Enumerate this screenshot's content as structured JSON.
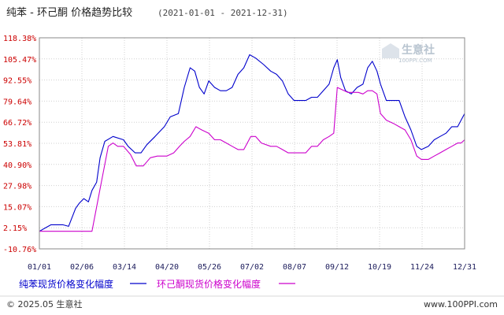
{
  "header": {
    "title": "纯苯 - 环己酮 价格趋势比较",
    "date_range": "(2021-01-01 - 2021-12-31)"
  },
  "watermark": {
    "text": "生意社",
    "sub": "100PPI.COM"
  },
  "footer": {
    "left": "© 2025.05 生意社",
    "right": "www.100PPI.com"
  },
  "colors": {
    "series1": "#0000cc",
    "series2": "#cc00cc",
    "ylabel": "#cc0000",
    "grid": "#d0d0d0"
  },
  "chart_data": {
    "type": "line",
    "title": "纯苯 - 环己酮 价格趋势比较",
    "subtitle": "(2021-01-01 - 2021-12-31)",
    "xlabel": "",
    "ylabel": "",
    "ylim": [
      -10.76,
      118.38
    ],
    "y_ticks": [
      "118.38%",
      "105.47%",
      "92.55%",
      "79.64%",
      "66.72%",
      "53.81%",
      "40.90%",
      "27.98%",
      "15.07%",
      "2.15%",
      "-10.76%"
    ],
    "x_ticks": [
      "01/01",
      "02/06",
      "03/14",
      "04/20",
      "05/26",
      "07/02",
      "08/07",
      "09/12",
      "10/19",
      "11/24",
      "12/31"
    ],
    "grid": true,
    "legend_position": "bottom",
    "series": [
      {
        "name": "纯苯现货价格变化幅度",
        "color": "#0000cc",
        "points": [
          [
            "01/01",
            0
          ],
          [
            "01/06",
            2
          ],
          [
            "01/11",
            4
          ],
          [
            "01/21",
            4
          ],
          [
            "01/26",
            3
          ],
          [
            "02/01",
            14
          ],
          [
            "02/04",
            17
          ],
          [
            "02/08",
            20
          ],
          [
            "02/12",
            18
          ],
          [
            "02/15",
            25
          ],
          [
            "02/19",
            30
          ],
          [
            "02/22",
            45
          ],
          [
            "02/26",
            55
          ],
          [
            "03/05",
            58
          ],
          [
            "03/14",
            56
          ],
          [
            "03/18",
            52
          ],
          [
            "03/24",
            48
          ],
          [
            "03/29",
            48
          ],
          [
            "04/03",
            53
          ],
          [
            "04/10",
            58
          ],
          [
            "04/18",
            64
          ],
          [
            "04/23",
            70
          ],
          [
            "04/30",
            72
          ],
          [
            "05/05",
            88
          ],
          [
            "05/10",
            100
          ],
          [
            "05/14",
            98
          ],
          [
            "05/18",
            88
          ],
          [
            "05/22",
            84
          ],
          [
            "05/26",
            92
          ],
          [
            "05/31",
            88
          ],
          [
            "06/05",
            86
          ],
          [
            "06/10",
            86
          ],
          [
            "06/15",
            88
          ],
          [
            "06/20",
            96
          ],
          [
            "06/25",
            100
          ],
          [
            "06/30",
            108
          ],
          [
            "07/05",
            106
          ],
          [
            "07/12",
            102
          ],
          [
            "07/18",
            98
          ],
          [
            "07/23",
            96
          ],
          [
            "07/28",
            92
          ],
          [
            "08/02",
            84
          ],
          [
            "08/07",
            80
          ],
          [
            "08/12",
            80
          ],
          [
            "08/17",
            80
          ],
          [
            "08/22",
            82
          ],
          [
            "08/27",
            82
          ],
          [
            "09/01",
            86
          ],
          [
            "09/06",
            90
          ],
          [
            "09/10",
            100
          ],
          [
            "09/13",
            105
          ],
          [
            "09/16",
            94
          ],
          [
            "09/20",
            86
          ],
          [
            "09/25",
            84
          ],
          [
            "09/30",
            88
          ],
          [
            "10/05",
            90
          ],
          [
            "10/09",
            100
          ],
          [
            "10/13",
            104
          ],
          [
            "10/17",
            98
          ],
          [
            "10/20",
            90
          ],
          [
            "10/25",
            80
          ],
          [
            "10/31",
            80
          ],
          [
            "11/05",
            80
          ],
          [
            "11/10",
            70
          ],
          [
            "11/15",
            62
          ],
          [
            "11/20",
            52
          ],
          [
            "11/24",
            50
          ],
          [
            "11/30",
            52
          ],
          [
            "12/05",
            56
          ],
          [
            "12/10",
            58
          ],
          [
            "12/15",
            60
          ],
          [
            "12/20",
            64
          ],
          [
            "12/25",
            64
          ],
          [
            "12/28",
            68
          ],
          [
            "12/31",
            72
          ]
        ]
      },
      {
        "name": "环己酮现货价格变化幅度",
        "color": "#cc00cc",
        "points": [
          [
            "01/01",
            0
          ],
          [
            "02/06",
            0
          ],
          [
            "02/15",
            0
          ],
          [
            "02/22",
            26
          ],
          [
            "03/01",
            52
          ],
          [
            "03/05",
            54
          ],
          [
            "03/09",
            52
          ],
          [
            "03/14",
            52
          ],
          [
            "03/20",
            47
          ],
          [
            "03/25",
            40
          ],
          [
            "03/31",
            40
          ],
          [
            "04/06",
            45
          ],
          [
            "04/12",
            46
          ],
          [
            "04/20",
            46
          ],
          [
            "04/26",
            48
          ],
          [
            "05/01",
            52
          ],
          [
            "05/05",
            55
          ],
          [
            "05/10",
            58
          ],
          [
            "05/15",
            64
          ],
          [
            "05/20",
            62
          ],
          [
            "05/26",
            60
          ],
          [
            "05/31",
            56
          ],
          [
            "06/05",
            56
          ],
          [
            "06/10",
            54
          ],
          [
            "06/15",
            52
          ],
          [
            "06/20",
            50
          ],
          [
            "06/25",
            50
          ],
          [
            "07/01",
            58
          ],
          [
            "07/05",
            58
          ],
          [
            "07/10",
            54
          ],
          [
            "07/18",
            52
          ],
          [
            "07/23",
            52
          ],
          [
            "07/28",
            50
          ],
          [
            "08/02",
            48
          ],
          [
            "08/07",
            48
          ],
          [
            "08/12",
            48
          ],
          [
            "08/17",
            48
          ],
          [
            "08/22",
            52
          ],
          [
            "08/27",
            52
          ],
          [
            "09/01",
            56
          ],
          [
            "09/06",
            58
          ],
          [
            "09/10",
            60
          ],
          [
            "09/13",
            88
          ],
          [
            "09/16",
            87
          ],
          [
            "09/22",
            85
          ],
          [
            "09/27",
            85
          ],
          [
            "10/01",
            85
          ],
          [
            "10/05",
            84
          ],
          [
            "10/09",
            86
          ],
          [
            "10/13",
            86
          ],
          [
            "10/17",
            84
          ],
          [
            "10/20",
            72
          ],
          [
            "10/25",
            68
          ],
          [
            "10/31",
            66
          ],
          [
            "11/05",
            64
          ],
          [
            "11/10",
            62
          ],
          [
            "11/15",
            56
          ],
          [
            "11/20",
            46
          ],
          [
            "11/24",
            44
          ],
          [
            "11/30",
            44
          ],
          [
            "12/05",
            46
          ],
          [
            "12/10",
            48
          ],
          [
            "12/15",
            50
          ],
          [
            "12/20",
            52
          ],
          [
            "12/25",
            54
          ],
          [
            "12/28",
            54
          ],
          [
            "12/31",
            56
          ]
        ]
      }
    ]
  }
}
